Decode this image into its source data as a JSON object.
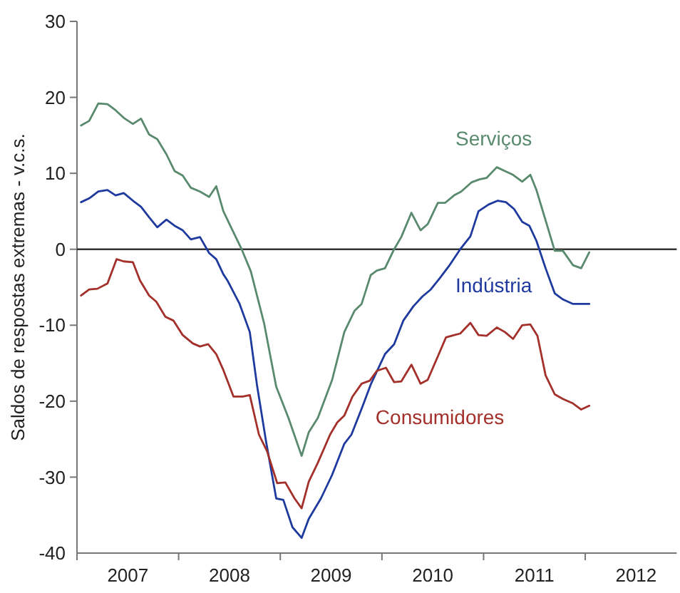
{
  "chart_data": {
    "type": "line",
    "ylabel": "Saldos de respostas extremas - v.c.s.",
    "xlim": [
      2007,
      2012.9
    ],
    "ylim": [
      -40,
      30
    ],
    "yticks": [
      -40,
      -30,
      -20,
      -10,
      0,
      10,
      20,
      30
    ],
    "xticks": [
      {
        "value": 2007,
        "label": null
      },
      {
        "value": 2007.5,
        "label": "2007"
      },
      {
        "value": 2008,
        "label": null
      },
      {
        "value": 2008.5,
        "label": "2008"
      },
      {
        "value": 2009,
        "label": null
      },
      {
        "value": 2009.5,
        "label": "2009"
      },
      {
        "value": 2010,
        "label": null
      },
      {
        "value": 2010.5,
        "label": "2010"
      },
      {
        "value": 2011,
        "label": null
      },
      {
        "value": 2011.5,
        "label": "2011"
      },
      {
        "value": 2012,
        "label": null
      },
      {
        "value": 2012.5,
        "label": "2012"
      }
    ],
    "grid": false,
    "legend": false,
    "marker": "none",
    "line_style": "solid",
    "ref_lines": [
      {
        "axis": "y",
        "value": 0,
        "label": null,
        "color": "#333333"
      }
    ],
    "series": [
      {
        "name": "Serviços",
        "color": "#5a8a6e",
        "x": [
          2007.04,
          2007.12,
          2007.21,
          2007.3,
          2007.38,
          2007.46,
          2007.55,
          2007.63,
          2007.71,
          2007.79,
          2007.88,
          2007.96,
          2008.04,
          2008.12,
          2008.21,
          2008.3,
          2008.37,
          2008.44,
          2008.53,
          2008.62,
          2008.71,
          2008.84,
          2008.96,
          2009.08,
          2009.21,
          2009.28,
          2009.37,
          2009.51,
          2009.63,
          2009.73,
          2009.8,
          2009.89,
          2009.95,
          2010.03,
          2010.12,
          2010.19,
          2010.29,
          2010.38,
          2010.45,
          2010.55,
          2010.62,
          2010.71,
          2010.78,
          2010.88,
          2010.96,
          2011.03,
          2011.13,
          2011.21,
          2011.29,
          2011.38,
          2011.46,
          2011.52,
          2011.61,
          2011.7,
          2011.78,
          2011.88,
          2011.96,
          2012.04
        ],
        "values": [
          16.3,
          16.9,
          19.2,
          19.1,
          18.3,
          17.3,
          16.5,
          17.2,
          15.1,
          14.5,
          12.5,
          10.3,
          9.7,
          8.1,
          7.6,
          6.9,
          8.3,
          5.0,
          2.5,
          0,
          -2.9,
          -9.7,
          -18.1,
          -22.2,
          -27.2,
          -24.1,
          -22.2,
          -17.2,
          -10.9,
          -8.1,
          -7.2,
          -3.4,
          -2.8,
          -2.5,
          0,
          1.6,
          4.8,
          2.5,
          3.3,
          6.1,
          6.1,
          7.1,
          7.6,
          8.8,
          9.2,
          9.4,
          10.8,
          10.3,
          9.8,
          8.9,
          9.8,
          7.8,
          3.8,
          -0.2,
          -0.2,
          -2.1,
          -2.5,
          -0.4
        ]
      },
      {
        "name": "Indústria",
        "color": "#1f3a9e",
        "x": [
          2007.04,
          2007.12,
          2007.21,
          2007.3,
          2007.38,
          2007.46,
          2007.55,
          2007.63,
          2007.71,
          2007.79,
          2007.88,
          2007.96,
          2008.04,
          2008.12,
          2008.21,
          2008.3,
          2008.37,
          2008.44,
          2008.48,
          2008.6,
          2008.7,
          2008.77,
          2008.86,
          2008.96,
          2009.03,
          2009.12,
          2009.21,
          2009.28,
          2009.4,
          2009.51,
          2009.63,
          2009.7,
          2009.8,
          2009.89,
          2010.03,
          2010.12,
          2010.21,
          2010.31,
          2010.4,
          2010.48,
          2010.57,
          2010.66,
          2010.77,
          2010.87,
          2010.95,
          2011.05,
          2011.14,
          2011.22,
          2011.3,
          2011.38,
          2011.45,
          2011.52,
          2011.61,
          2011.7,
          2011.78,
          2011.88,
          2012.04
        ],
        "values": [
          6.2,
          6.7,
          7.6,
          7.8,
          7.1,
          7.4,
          6.4,
          5.6,
          4.2,
          2.9,
          3.9,
          3.1,
          2.5,
          1.3,
          1.6,
          -0.5,
          -1.3,
          -3.3,
          -4.1,
          -7.2,
          -10.9,
          -17.8,
          -25.3,
          -32.8,
          -33.0,
          -36.6,
          -38.0,
          -35.5,
          -32.8,
          -29.7,
          -25.6,
          -24.4,
          -21.0,
          -17.8,
          -13.8,
          -12.5,
          -9.4,
          -7.5,
          -6.2,
          -5.3,
          -3.8,
          -2.2,
          0,
          1.7,
          5.0,
          5.9,
          6.4,
          6.2,
          5.3,
          3.6,
          3.1,
          1.1,
          -2.5,
          -5.8,
          -6.6,
          -7.2,
          -7.2
        ]
      },
      {
        "name": "Consumidores",
        "color": "#a3302a",
        "x": [
          2007.04,
          2007.12,
          2007.2,
          2007.3,
          2007.39,
          2007.46,
          2007.55,
          2007.62,
          2007.71,
          2007.78,
          2007.87,
          2007.95,
          2008.04,
          2008.14,
          2008.21,
          2008.29,
          2008.37,
          2008.44,
          2008.54,
          2008.63,
          2008.7,
          2008.79,
          2008.87,
          2008.97,
          2009.05,
          2009.14,
          2009.21,
          2009.28,
          2009.37,
          2009.49,
          2009.56,
          2009.63,
          2009.71,
          2009.8,
          2009.88,
          2009.95,
          2010.04,
          2010.12,
          2010.19,
          2010.29,
          2010.38,
          2010.45,
          2010.55,
          2010.63,
          2010.71,
          2010.77,
          2010.87,
          2010.95,
          2011.03,
          2011.13,
          2011.21,
          2011.29,
          2011.38,
          2011.46,
          2011.53,
          2011.61,
          2011.7,
          2011.78,
          2011.88,
          2011.96,
          2012.04
        ],
        "values": [
          -6.1,
          -5.3,
          -5.2,
          -4.5,
          -1.3,
          -1.6,
          -1.7,
          -4.1,
          -6.1,
          -6.9,
          -8.9,
          -9.4,
          -11.3,
          -12.4,
          -12.8,
          -12.5,
          -13.8,
          -15.9,
          -19.4,
          -19.4,
          -19.2,
          -24.4,
          -26.6,
          -30.8,
          -30.7,
          -32.8,
          -34.1,
          -30.6,
          -28.1,
          -24.4,
          -22.8,
          -21.9,
          -19.4,
          -17.7,
          -17.3,
          -16.0,
          -15.6,
          -17.5,
          -17.4,
          -15.2,
          -17.7,
          -17.2,
          -14.1,
          -11.6,
          -11.3,
          -11.1,
          -9.7,
          -11.3,
          -11.4,
          -10.3,
          -10.9,
          -11.8,
          -10.0,
          -9.9,
          -11.4,
          -16.6,
          -19.1,
          -19.7,
          -20.3,
          -21.1,
          -20.6
        ]
      }
    ]
  }
}
